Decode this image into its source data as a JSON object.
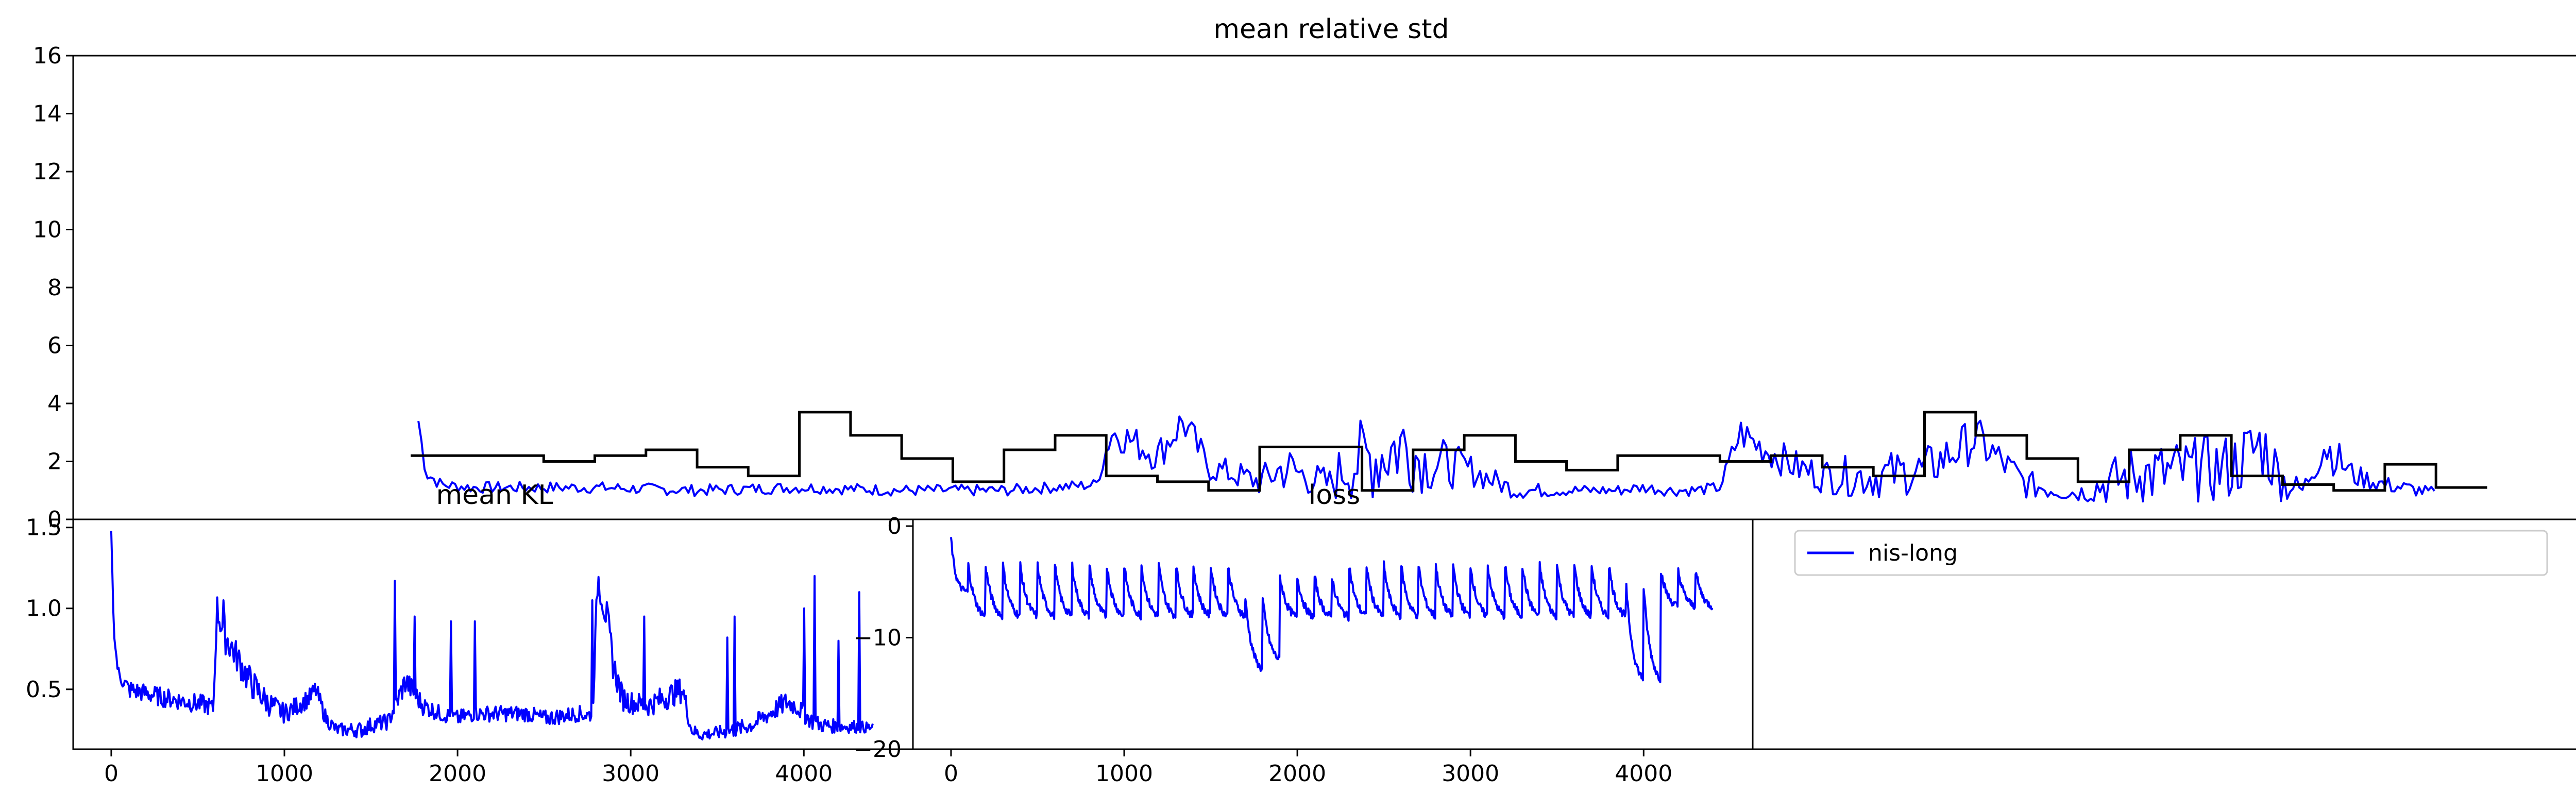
{
  "chart_data": [
    {
      "type": "line",
      "title": "mean relative std",
      "xlabel": "",
      "ylabel": "",
      "xlim": [
        -220,
        4700
      ],
      "ylim": [
        0,
        16
      ],
      "yticks": [
        "0",
        "2",
        "4",
        "6",
        "8",
        "10",
        "12",
        "14",
        "16"
      ],
      "series": [
        {
          "color": "#0000ff",
          "style": "noisy",
          "x": [
            455,
            470,
            500,
            560,
            650,
            800,
            1000,
            1200,
            1400,
            1600,
            1780,
            1810,
            1840,
            1900,
            1950,
            2000,
            2100,
            2150,
            2200,
            2240,
            2270,
            2330,
            2380,
            2420,
            2450,
            2500,
            2600,
            2700,
            2800,
            2850,
            2900,
            2950,
            3000,
            3040,
            3070,
            3100,
            3150,
            3200,
            3300,
            3400,
            3500,
            3600,
            3700,
            3800,
            3900,
            4000,
            4060,
            4100,
            4140,
            4180,
            4240,
            4300,
            4400
          ],
          "y": [
            3.4,
            1.6,
            1.2,
            1.1,
            1.1,
            1.1,
            1.0,
            1.1,
            1.0,
            1.0,
            1.2,
            3.0,
            2.8,
            2.2,
            3.4,
            1.8,
            1.3,
            1.8,
            1.4,
            1.2,
            1.9,
            2.2,
            2.6,
            2.0,
            1.9,
            1.8,
            1.0,
            1.0,
            1.0,
            1.1,
            1.0,
            1.0,
            1.1,
            3.0,
            2.6,
            2.3,
            1.8,
            1.5,
            1.5,
            1.7,
            2.8,
            1.2,
            0.9,
            1.5,
            1.6,
            1.8,
            2.6,
            1.3,
            1.0,
            2.6,
            1.5,
            1.2,
            0.9
          ],
          "amp": [
            0.3,
            0.3,
            0.2,
            0.2,
            0.2,
            0.2,
            0.2,
            0.2,
            0.2,
            0.2,
            0.2,
            0.6,
            0.6,
            0.6,
            0.7,
            0.5,
            0.5,
            0.9,
            0.6,
            0.6,
            1.3,
            1.6,
            1.6,
            1.1,
            1.0,
            0.6,
            0.3,
            0.2,
            0.2,
            0.2,
            0.2,
            0.2,
            0.2,
            0.6,
            0.6,
            0.6,
            0.6,
            0.6,
            0.8,
            0.8,
            0.8,
            0.5,
            0.3,
            1.1,
            1.2,
            1.2,
            1.3,
            0.8,
            0.3,
            0.9,
            0.4,
            0.3,
            0.2
          ]
        },
        {
          "color": "#000000",
          "style": "step",
          "x": [
            440,
            500,
            600,
            700,
            800,
            900,
            1000,
            1100,
            1200,
            1300,
            1400,
            1500,
            1600,
            1700,
            1800,
            1900,
            2000,
            2100,
            2200,
            2300,
            2400,
            2500,
            2600,
            2700,
            2800,
            2900,
            3000,
            3100,
            3200,
            3300,
            3400,
            3500,
            3600,
            3700,
            3800,
            3900,
            4000,
            4100,
            4200,
            4300,
            4400
          ],
          "y": [
            2.2,
            2.2,
            2.2,
            2.0,
            2.2,
            2.4,
            1.8,
            1.5,
            3.7,
            2.9,
            2.1,
            1.3,
            2.4,
            2.9,
            1.5,
            1.3,
            1.0,
            2.5,
            2.5,
            1.0,
            2.4,
            2.9,
            2.0,
            1.7,
            2.2,
            2.2,
            2.0,
            2.2,
            1.8,
            1.5,
            3.7,
            2.9,
            2.1,
            1.3,
            2.4,
            2.9,
            1.5,
            1.2,
            1.0,
            1.9,
            1.1
          ]
        }
      ]
    },
    {
      "type": "line",
      "title": "mean KL",
      "xlabel": "",
      "ylabel": "",
      "xlim": [
        -220,
        4630
      ],
      "ylim": [
        0.13,
        1.55
      ],
      "xticks": [
        "0",
        "1000",
        "2000",
        "3000",
        "4000"
      ],
      "yticks": [
        "0.5",
        "1.0",
        "1.5"
      ],
      "series": [
        {
          "color": "#0000ff",
          "x": [
            0,
            15,
            40,
            100,
            300,
            560,
            590,
            610,
            650,
            700,
            800,
            900,
            1000,
            1150,
            1180,
            1240,
            1300,
            1450,
            1500,
            1600,
            1700,
            1800,
            1900,
            2000,
            2100,
            2200,
            2400,
            2500,
            2700,
            2750,
            2780,
            2810,
            2860,
            2900,
            2950,
            3000,
            3100,
            3200,
            3300,
            3350,
            3400,
            3500,
            3600,
            3700,
            3800,
            3900,
            3950,
            4000,
            4050,
            4100,
            4200,
            4300,
            4400
          ],
          "y": [
            1.48,
            0.85,
            0.6,
            0.5,
            0.45,
            0.4,
            0.38,
            1.0,
            0.85,
            0.75,
            0.55,
            0.42,
            0.35,
            0.45,
            0.5,
            0.32,
            0.25,
            0.25,
            0.28,
            0.3,
            0.55,
            0.4,
            0.35,
            0.32,
            0.35,
            0.35,
            0.35,
            0.32,
            0.35,
            0.34,
            0.35,
            1.2,
            0.95,
            0.65,
            0.45,
            0.42,
            0.4,
            0.45,
            0.5,
            0.25,
            0.22,
            0.23,
            0.25,
            0.28,
            0.35,
            0.42,
            0.4,
            0.35,
            0.3,
            0.28,
            0.27,
            0.27,
            0.26
          ],
          "amp": [
            0,
            0,
            0.05,
            0.06,
            0.06,
            0.06,
            0.05,
            0.1,
            0.12,
            0.1,
            0.1,
            0.08,
            0.06,
            0.06,
            0.06,
            0.05,
            0.04,
            0.05,
            0.05,
            0.05,
            0.08,
            0.06,
            0.05,
            0.05,
            0.05,
            0.05,
            0.05,
            0.05,
            0.05,
            0.05,
            0.05,
            0.1,
            0.12,
            0.1,
            0.08,
            0.07,
            0.07,
            0.08,
            0.08,
            0.04,
            0.04,
            0.04,
            0.05,
            0.05,
            0.06,
            0.07,
            0.06,
            0.06,
            0.05,
            0.05,
            0.04,
            0.04,
            0.03
          ],
          "spikes": [
            [
              650,
              1.05
            ],
            [
              1640,
              1.17
            ],
            [
              1750,
              0.95
            ],
            [
              1960,
              0.92
            ],
            [
              2100,
              0.92
            ],
            [
              2780,
              1.05
            ],
            [
              3080,
              0.95
            ],
            [
              3560,
              0.82
            ],
            [
              3600,
              0.95
            ],
            [
              4000,
              1.0
            ],
            [
              4060,
              1.2
            ],
            [
              4200,
              0.8
            ],
            [
              4320,
              1.1
            ]
          ]
        }
      ]
    },
    {
      "type": "line",
      "title": "loss",
      "xlabel": "",
      "ylabel": "",
      "xlim": [
        -220,
        4630
      ],
      "ylim": [
        -20,
        0.6
      ],
      "xticks": [
        "0",
        "1000",
        "2000",
        "3000",
        "4000"
      ],
      "yticks": [
        "0",
        "−10",
        "−20"
      ],
      "series": [
        {
          "name": "nis-long",
          "color": "#0000ff"
        }
      ]
    }
  ],
  "legend": {
    "entries": [
      {
        "label": "nis-long",
        "color": "#0000ff"
      }
    ]
  }
}
